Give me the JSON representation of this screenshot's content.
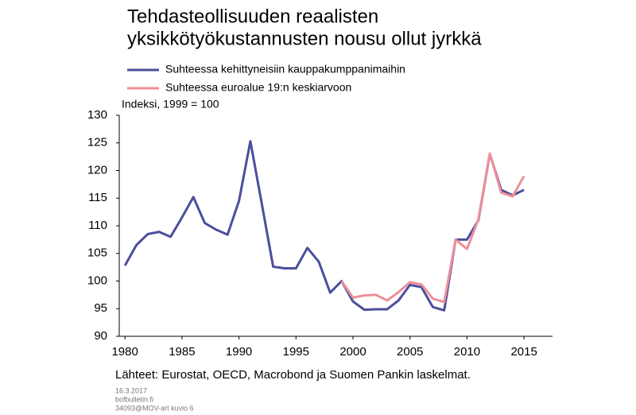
{
  "chart_data": {
    "type": "line",
    "title": [
      "Tehdasteollisuuden reaalisten",
      "yksikkötyökustannusten nousu ollut jyrkkä"
    ],
    "y_label": "Indeksi, 1999 = 100",
    "source": "Lähteet: Eurostat, OECD, Macrobond ja Suomen Pankin laskelmat.",
    "footer": [
      "16.3.2017",
      "bofbulletin.fi",
      "34093@MOV-art kuvio 6"
    ],
    "x": [
      1980,
      1981,
      1982,
      1983,
      1984,
      1985,
      1986,
      1987,
      1988,
      1989,
      1990,
      1991,
      1992,
      1993,
      1994,
      1995,
      1996,
      1997,
      1998,
      1999,
      2000,
      2001,
      2002,
      2003,
      2004,
      2005,
      2006,
      2007,
      2008,
      2009,
      2010,
      2011,
      2012,
      2013,
      2014,
      2015
    ],
    "series": [
      {
        "name": "Suhteessa kehittyneisiin kauppakumppanimaihin",
        "color": "#4a4f9c",
        "values": [
          102.8,
          106.5,
          108.5,
          108.9,
          108.0,
          111.5,
          115.2,
          110.5,
          109.3,
          108.4,
          114.5,
          125.3,
          114.0,
          102.6,
          102.3,
          102.3,
          106.0,
          103.5,
          97.9,
          100,
          96.3,
          94.8,
          94.9,
          94.9,
          96.5,
          99.3,
          98.9,
          95.3,
          94.7,
          107.5,
          107.5,
          111.0,
          123.0,
          116.5,
          115.5,
          116.5
        ]
      },
      {
        "name": "Suhteessa euroalue 19:n keskiarvoon",
        "color": "#ee8f9a",
        "values": [
          null,
          null,
          null,
          null,
          null,
          null,
          null,
          null,
          null,
          null,
          null,
          null,
          null,
          null,
          null,
          null,
          null,
          null,
          null,
          100,
          97.0,
          97.4,
          97.5,
          96.5,
          98.0,
          99.8,
          99.4,
          96.8,
          96.2,
          107.5,
          105.8,
          111.2,
          123.1,
          116.0,
          115.3,
          119.0
        ]
      }
    ],
    "xlim": [
      1979.5,
      2017.5
    ],
    "xticks": [
      1980,
      1985,
      1990,
      1995,
      2000,
      2005,
      2010,
      2015
    ],
    "ylim": [
      90,
      130
    ],
    "yticks": [
      90,
      95,
      100,
      105,
      110,
      115,
      120,
      125,
      130
    ]
  }
}
